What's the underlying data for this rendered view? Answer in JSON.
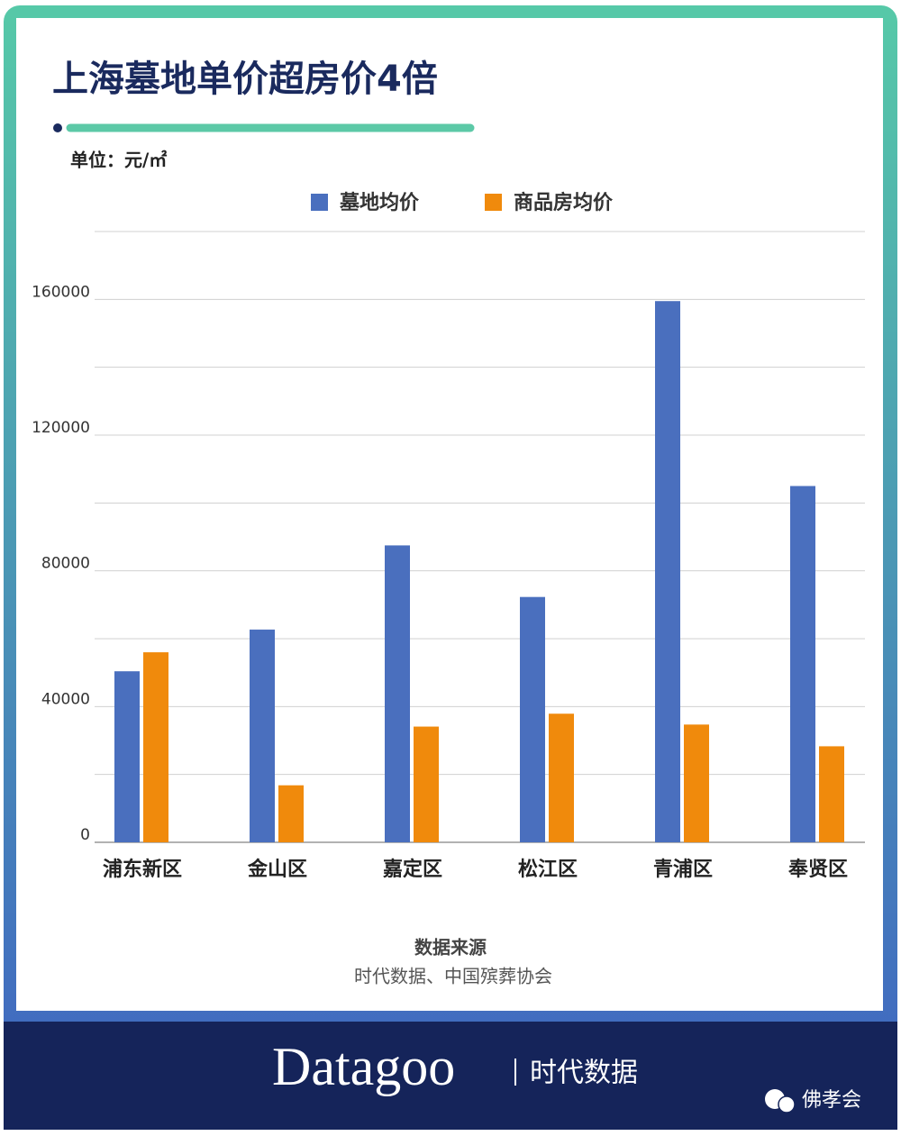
{
  "chart_data": {
    "type": "bar",
    "title": "上海墓地单价超房价4倍",
    "unit_label": "单位：元/㎡",
    "categories": [
      "浦东新区",
      "金山区",
      "嘉定区",
      "松江区",
      "青浦区",
      "奉贤区"
    ],
    "series": [
      {
        "name": "墓地均价",
        "color": "#4a6fbe",
        "values": [
          50400,
          62700,
          87500,
          72300,
          159500,
          105000
        ]
      },
      {
        "name": "商品房均价",
        "color": "#f08a0c",
        "values": [
          56000,
          16800,
          34100,
          37900,
          34700,
          28300
        ]
      }
    ],
    "ylim": [
      0,
      180000
    ],
    "yticks": [
      0,
      40000,
      80000,
      120000,
      160000
    ],
    "minor_yticks": [
      20000,
      60000,
      100000,
      140000,
      180000
    ],
    "grid": true,
    "legend": "top",
    "source_title": "数据来源",
    "source": "时代数据、中国殡葬协会"
  },
  "footer": {
    "brand": "Datagoo",
    "brand_cn": "时代数据",
    "watermark": "佛孝会"
  }
}
